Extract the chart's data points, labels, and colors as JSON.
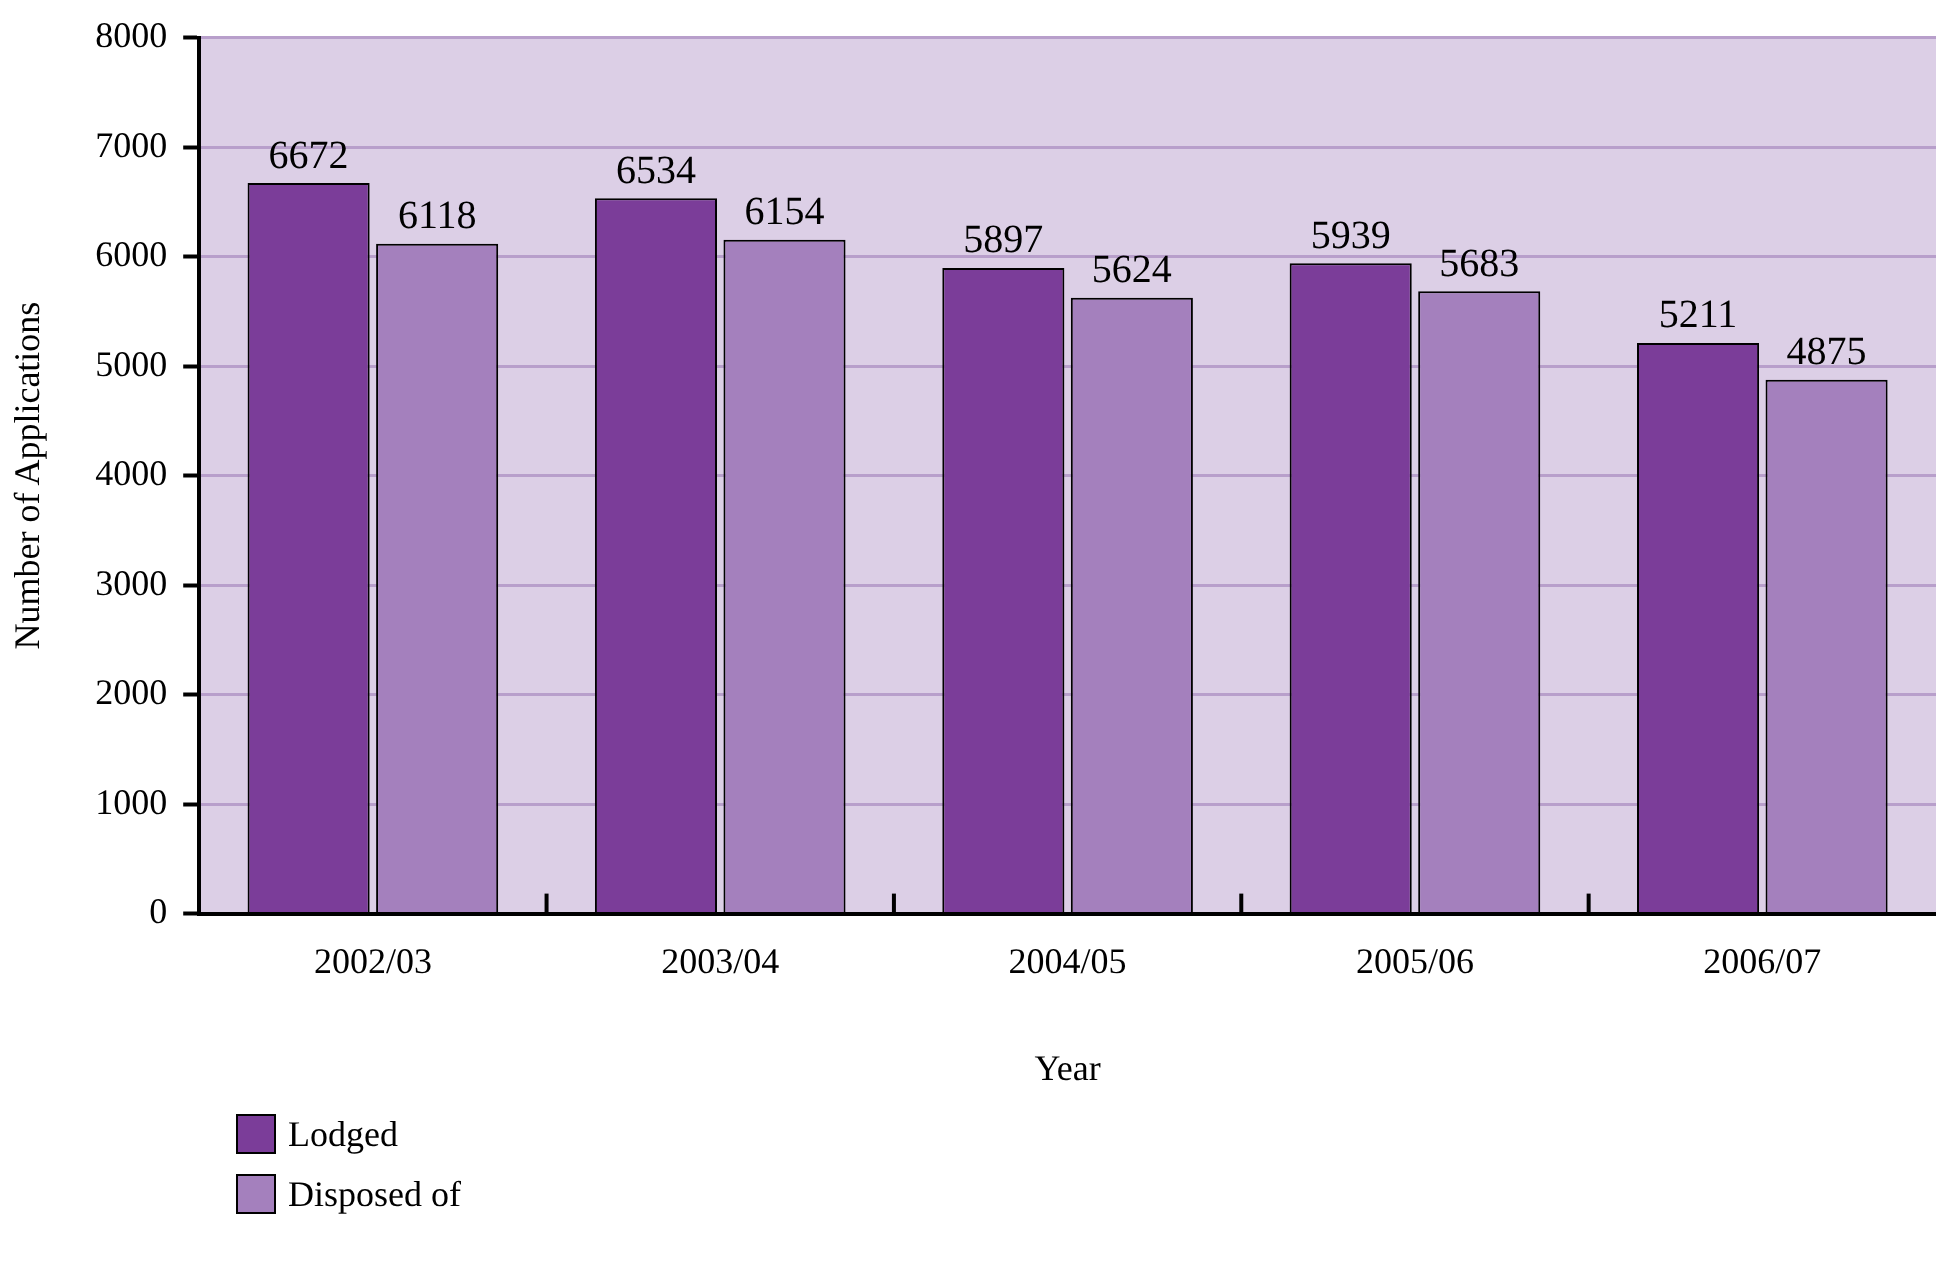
{
  "chart_data": {
    "type": "bar",
    "xlabel": "Year",
    "ylabel": "Number of Applications",
    "categories": [
      "2002/03",
      "2003/04",
      "2004/05",
      "2005/06",
      "2006/07"
    ],
    "series": [
      {
        "name": "Lodged",
        "color": "#7b3d99",
        "values": [
          6672,
          6534,
          5897,
          5939,
          5211
        ]
      },
      {
        "name": "Disposed of",
        "color": "#a480bd",
        "values": [
          6118,
          6154,
          5624,
          5683,
          4875
        ]
      }
    ],
    "ylim": [
      0,
      8000
    ],
    "yticks": [
      0,
      1000,
      2000,
      3000,
      4000,
      5000,
      6000,
      7000,
      8000
    ],
    "grid": "y",
    "legend": "bottom left",
    "data_labels": true
  }
}
